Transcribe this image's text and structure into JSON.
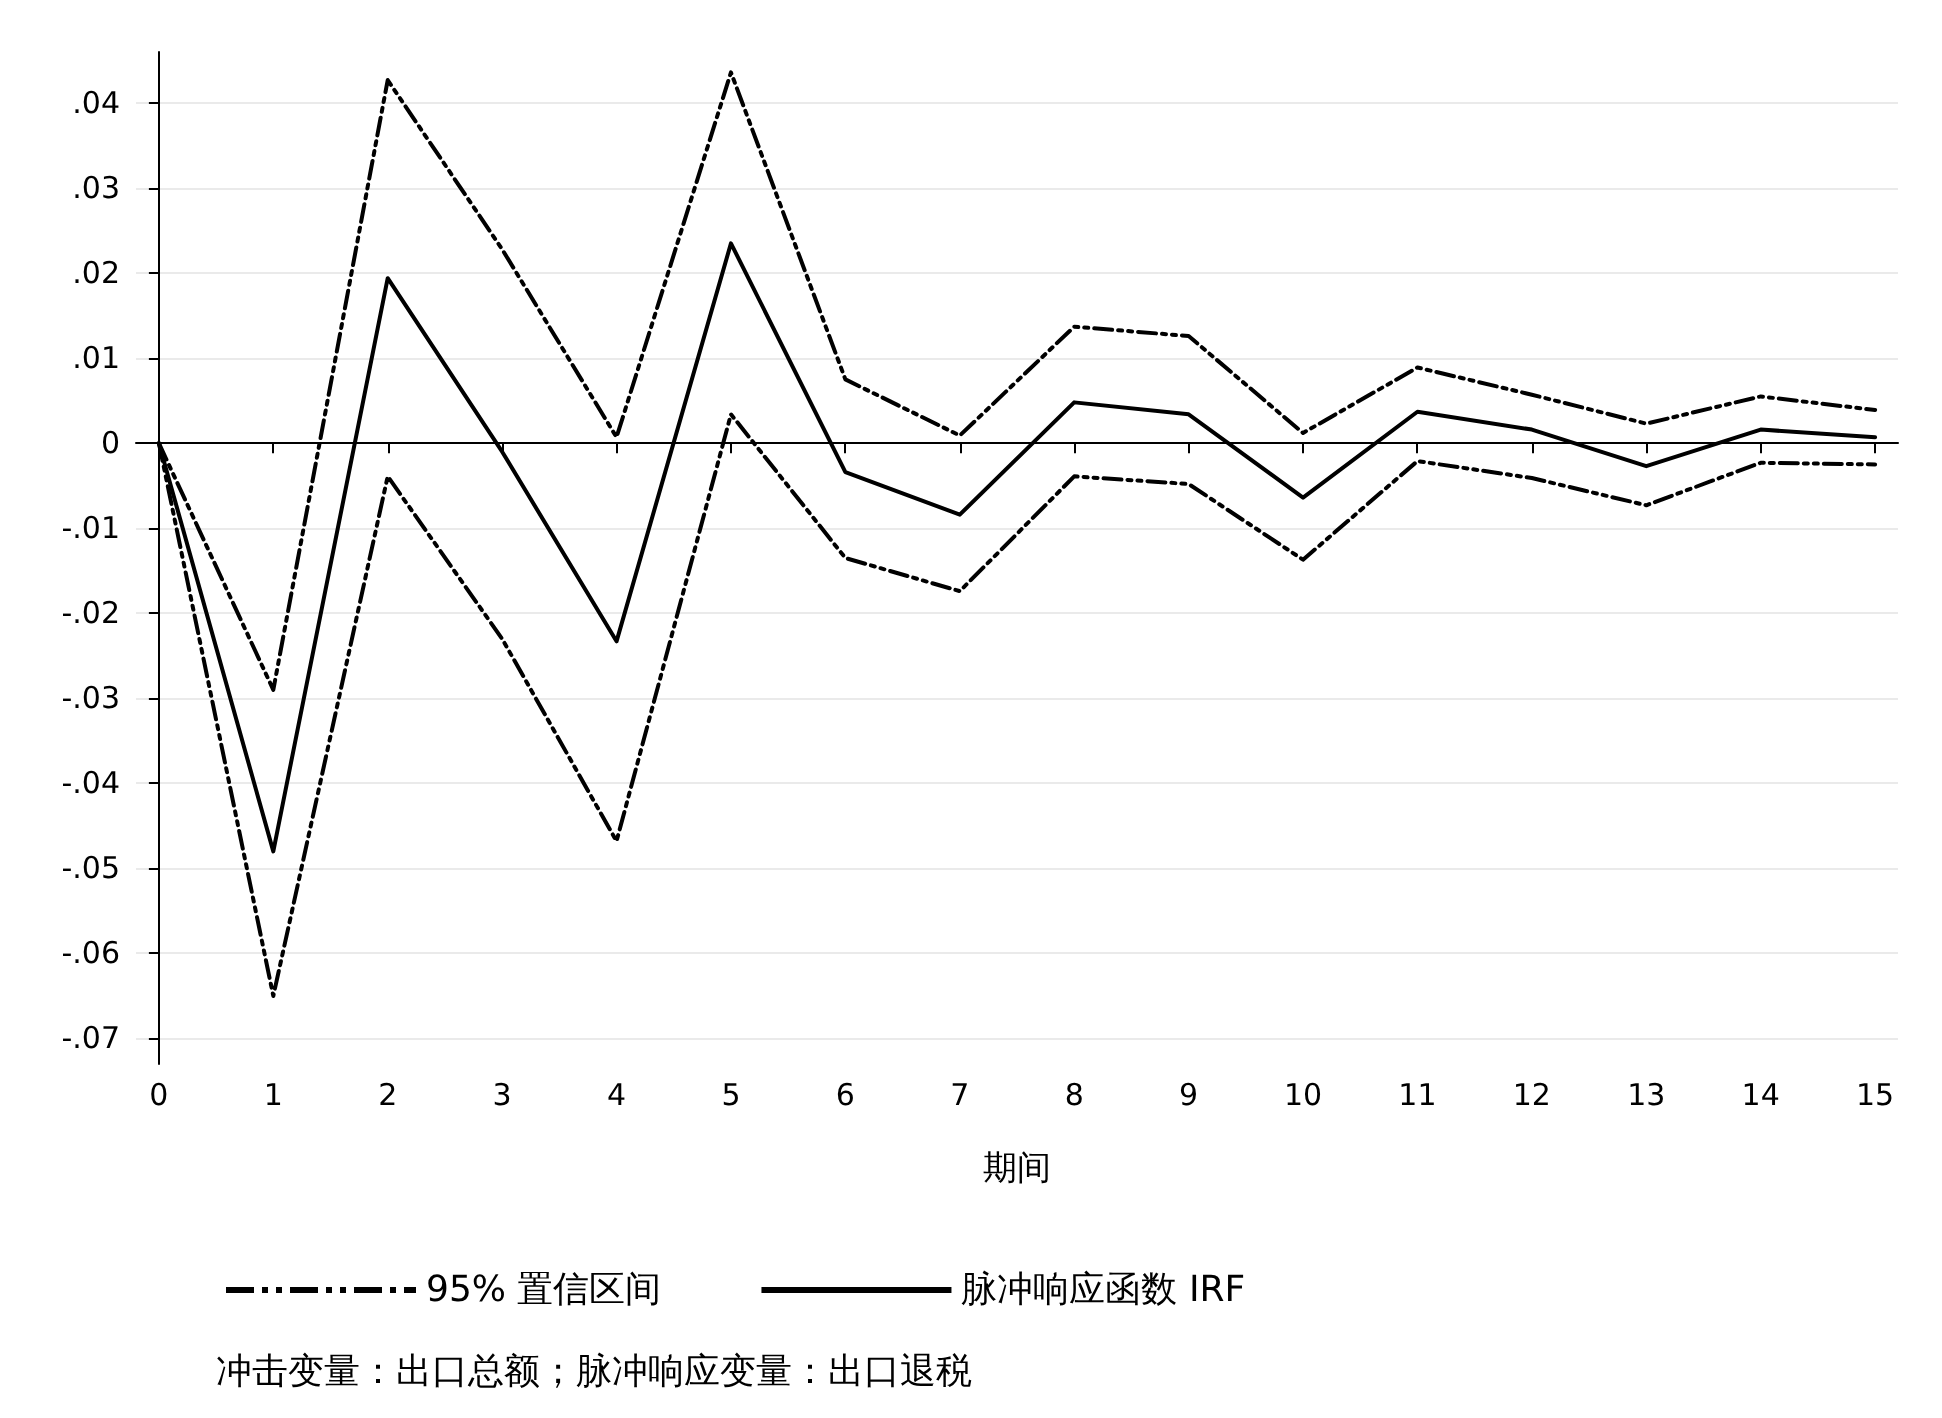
{
  "chart_data": {
    "type": "line",
    "xlabel": "期间",
    "x": [
      0,
      1,
      2,
      3,
      4,
      5,
      6,
      7,
      8,
      9,
      10,
      11,
      12,
      13,
      14,
      15
    ],
    "series": [
      {
        "name": "95% 置信区间",
        "color": "#000000",
        "line_style": "dashed",
        "values": [
          0,
          -0.029,
          0.0427,
          0.0228,
          0.0007,
          0.0436,
          0.0075,
          0.0009,
          0.0137,
          0.0126,
          0.0012,
          0.0089,
          0.0057,
          0.0023,
          0.0055,
          0.0039
        ]
      },
      {
        "color": "#000000",
        "line_style": "dashed",
        "values": [
          0,
          -0.065,
          -0.0039,
          -0.023,
          -0.0468,
          0.0034,
          -0.0135,
          -0.0174,
          -0.0039,
          -0.0048,
          -0.0137,
          -0.0021,
          -0.0041,
          -0.0073,
          -0.0023,
          -0.0025
        ]
      },
      {
        "name": "脉冲响应函数 IRF",
        "color": "#000000",
        "line_style": "solid",
        "values": [
          0,
          -0.048,
          0.0194,
          -0.001,
          -0.0233,
          0.0235,
          -0.0034,
          -0.0084,
          0.0048,
          0.0034,
          -0.0064,
          0.0037,
          0.0016,
          -0.0027,
          0.0016,
          0.0007
        ]
      }
    ],
    "xlim": [
      -0.2,
      15.2
    ],
    "xticks": [
      0,
      1,
      2,
      3,
      4,
      5,
      6,
      7,
      8,
      9,
      10,
      11,
      12,
      13,
      14,
      15
    ],
    "ylim": [
      -0.073,
      0.046
    ],
    "yticks": [
      {
        "value": -0.07,
        "label": "-.07"
      },
      {
        "value": -0.06,
        "label": "-.06"
      },
      {
        "value": -0.05,
        "label": "-.05"
      },
      {
        "value": -0.04,
        "label": "-.04"
      },
      {
        "value": -0.03,
        "label": "-.03"
      },
      {
        "value": -0.02,
        "label": "-.02"
      },
      {
        "value": -0.01,
        "label": "-.01"
      },
      {
        "value": 0,
        "label": "0"
      },
      {
        "value": 0.01,
        "label": ".01"
      },
      {
        "value": 0.02,
        "label": ".02"
      },
      {
        "value": 0.03,
        "label": ".03"
      },
      {
        "value": 0.04,
        "label": ".04"
      }
    ],
    "grid": "y",
    "legend": "bottom",
    "marker": "none",
    "annotations": [
      "冲击变量：出口总额；脉冲响应变量：出口退税"
    ]
  }
}
